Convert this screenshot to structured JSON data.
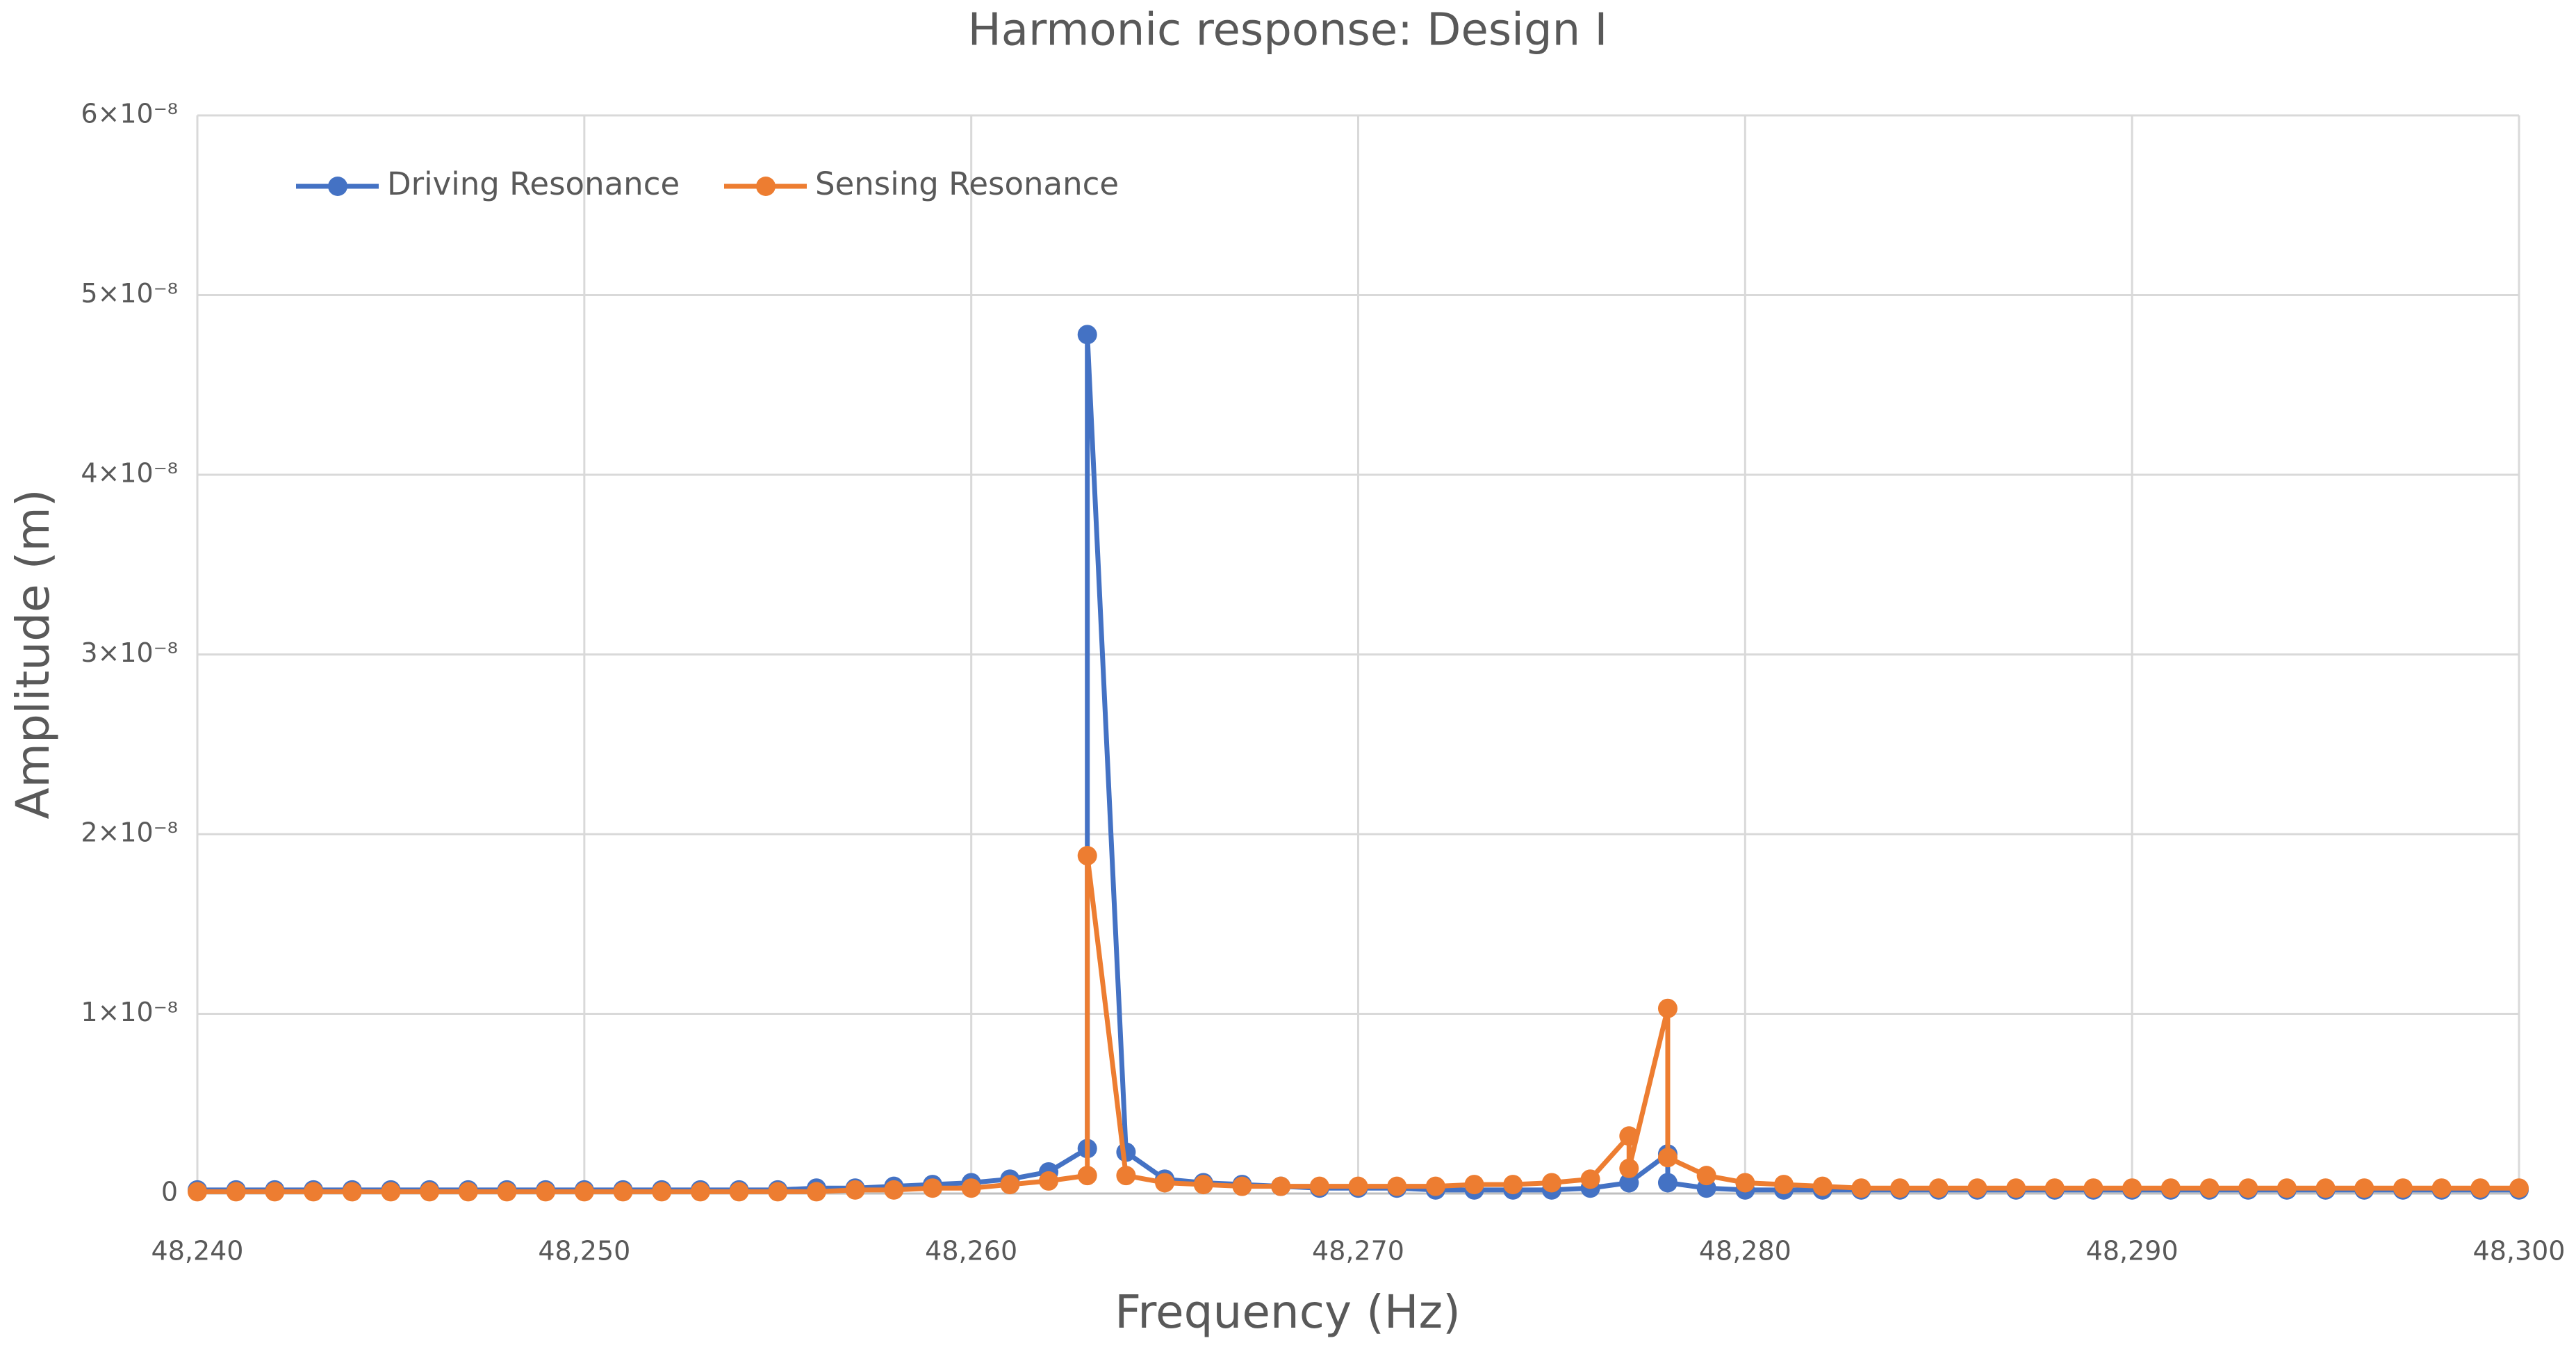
{
  "chart_data": {
    "type": "line",
    "title": "Harmonic response: Design I",
    "x_label": "Frequency (Hz)",
    "y_label": "Amplitude (m)",
    "x": [
      48240,
      48241,
      48242,
      48243,
      48244,
      48245,
      48246,
      48247,
      48248,
      48249,
      48250,
      48251,
      48252,
      48253,
      48254,
      48255,
      48256,
      48257,
      48258,
      48259,
      48260,
      48261,
      48262,
      48263,
      48263,
      48264,
      48265,
      48266,
      48267,
      48268,
      48269,
      48270,
      48271,
      48272,
      48273,
      48274,
      48275,
      48276,
      48277,
      48277,
      48278,
      48278,
      48279,
      48280,
      48281,
      48282,
      48283,
      48284,
      48285,
      48286,
      48287,
      48288,
      48289,
      48290,
      48291,
      48292,
      48293,
      48294,
      48295,
      48296,
      48297,
      48298,
      48299,
      48300
    ],
    "series": [
      {
        "name": "Driving Resonance",
        "color": "#4472c4",
        "values": [
          2e-10,
          2e-10,
          2e-10,
          2e-10,
          2e-10,
          2e-10,
          2e-10,
          2e-10,
          2e-10,
          2e-10,
          2e-10,
          2e-10,
          2e-10,
          2e-10,
          2e-10,
          2e-10,
          3e-10,
          3e-10,
          4e-10,
          5e-10,
          6e-10,
          8e-10,
          1.2e-09,
          2.5e-09,
          4.78e-08,
          2.3e-09,
          8e-10,
          6e-10,
          5e-10,
          4e-10,
          3e-10,
          3e-10,
          3e-10,
          2e-10,
          2e-10,
          2e-10,
          2e-10,
          3e-10,
          6e-10,
          6e-10,
          2.2e-09,
          6e-10,
          3e-10,
          2e-10,
          2e-10,
          2e-10,
          2e-10,
          2e-10,
          2e-10,
          2e-10,
          2e-10,
          2e-10,
          2e-10,
          2e-10,
          2e-10,
          2e-10,
          2e-10,
          2e-10,
          2e-10,
          2e-10,
          2e-10,
          2e-10,
          2e-10,
          2e-10
        ]
      },
      {
        "name": "Sensing Resonance",
        "color": "#ed7d31",
        "values": [
          1e-10,
          1e-10,
          1e-10,
          1e-10,
          1e-10,
          1e-10,
          1e-10,
          1e-10,
          1e-10,
          1e-10,
          1e-10,
          1e-10,
          1e-10,
          1e-10,
          1e-10,
          1e-10,
          1e-10,
          2e-10,
          2e-10,
          3e-10,
          3e-10,
          5e-10,
          7e-10,
          1e-09,
          1.88e-08,
          1e-09,
          6e-10,
          5e-10,
          4e-10,
          4e-10,
          4e-10,
          4e-10,
          4e-10,
          4e-10,
          5e-10,
          5e-10,
          6e-10,
          8e-10,
          3.2e-09,
          1.4e-09,
          1.03e-08,
          2e-09,
          1e-09,
          6e-10,
          5e-10,
          4e-10,
          3e-10,
          3e-10,
          3e-10,
          3e-10,
          3e-10,
          3e-10,
          3e-10,
          3e-10,
          3e-10,
          3e-10,
          3e-10,
          3e-10,
          3e-10,
          3e-10,
          3e-10,
          3e-10,
          3e-10,
          3e-10
        ]
      }
    ],
    "xlim": [
      48240,
      48300
    ],
    "xticks": [
      {
        "value": 48240,
        "label": "48,240"
      },
      {
        "value": 48250,
        "label": "48,250"
      },
      {
        "value": 48260,
        "label": "48,260"
      },
      {
        "value": 48270,
        "label": "48,270"
      },
      {
        "value": 48280,
        "label": "48,280"
      },
      {
        "value": 48290,
        "label": "48,290"
      },
      {
        "value": 48300,
        "label": "48,300"
      }
    ],
    "ylim": [
      0,
      6e-08
    ],
    "yticks": [
      0,
      {
        "value": 1e-08,
        "label": "1×10⁻⁸"
      },
      {
        "value": 2e-08,
        "label": "2×10⁻⁸"
      },
      {
        "value": 3e-08,
        "label": "3×10⁻⁸"
      },
      {
        "value": 4e-08,
        "label": "4×10⁻⁸"
      },
      {
        "value": 5e-08,
        "label": "5×10⁻⁸"
      },
      {
        "value": 6e-08,
        "label": "6×10⁻⁸"
      }
    ],
    "grid": true,
    "legend": "top-left"
  }
}
